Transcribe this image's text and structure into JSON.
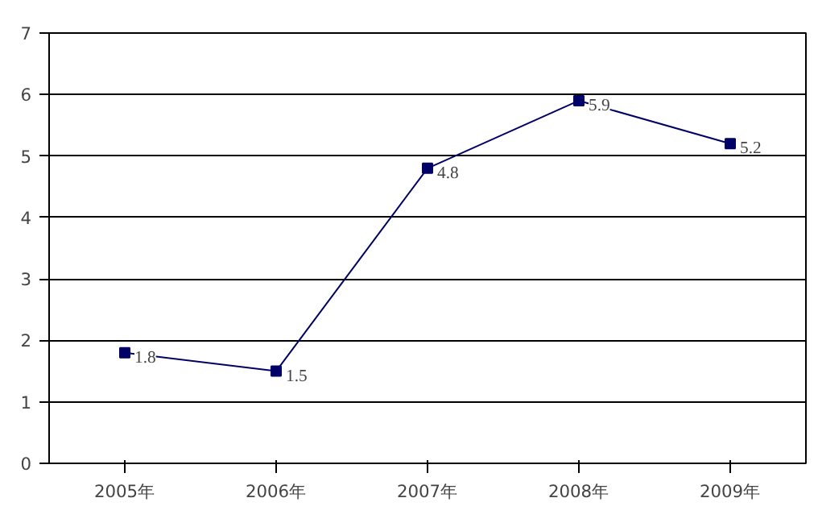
{
  "chart_data": {
    "type": "line",
    "categories": [
      "2005年",
      "2006年",
      "2007年",
      "2008年",
      "2009年"
    ],
    "series": [
      {
        "color": "#000066",
        "values": [
          1.8,
          1.5,
          4.8,
          5.9,
          5.2
        ]
      }
    ],
    "marker": "square",
    "data_labels": true,
    "ylim": [
      0,
      7
    ],
    "yticks": [
      0,
      1,
      2,
      3,
      4,
      5,
      6,
      7
    ],
    "grid": "y",
    "line_style": "solid"
  }
}
